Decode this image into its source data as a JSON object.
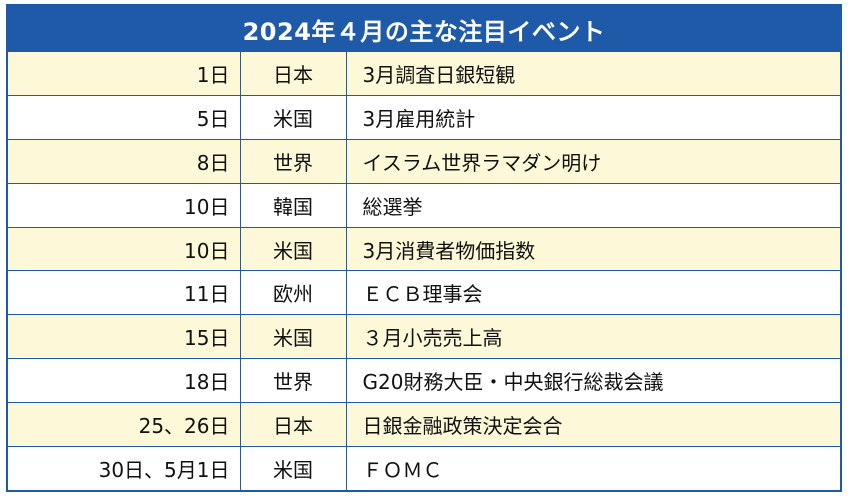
{
  "title": "2024年４月の主な注目イベント",
  "rows": [
    {
      "date": "1日",
      "region": "日本",
      "event": "3月調査日銀短観"
    },
    {
      "date": "5日",
      "region": "米国",
      "event": "3月雇用統計"
    },
    {
      "date": "8日",
      "region": "世界",
      "event": "イスラム世界ラマダン明け"
    },
    {
      "date": "10日",
      "region": "韓国",
      "event": "総選挙"
    },
    {
      "date": "10日",
      "region": "米国",
      "event": "3月消費者物価指数"
    },
    {
      "date": "11日",
      "region": "欧州",
      "event": "ＥＣＢ理事会"
    },
    {
      "date": "15日",
      "region": "米国",
      "event": "３月小売売上高"
    },
    {
      "date": "18日",
      "region": "世界",
      "event": "G20財務大臣・中央銀行総裁会議"
    },
    {
      "date": "25、26日",
      "region": "日本",
      "event": "日銀金融政策決定会合"
    },
    {
      "date": "30日、5月1日",
      "region": "米国",
      "event": "ＦＯＭＣ"
    }
  ],
  "colors": {
    "header_bg": "#1f5aa8",
    "odd_row_bg": "#fdf8d8",
    "even_row_bg": "#ffffff",
    "border": "#1f5aa8"
  }
}
